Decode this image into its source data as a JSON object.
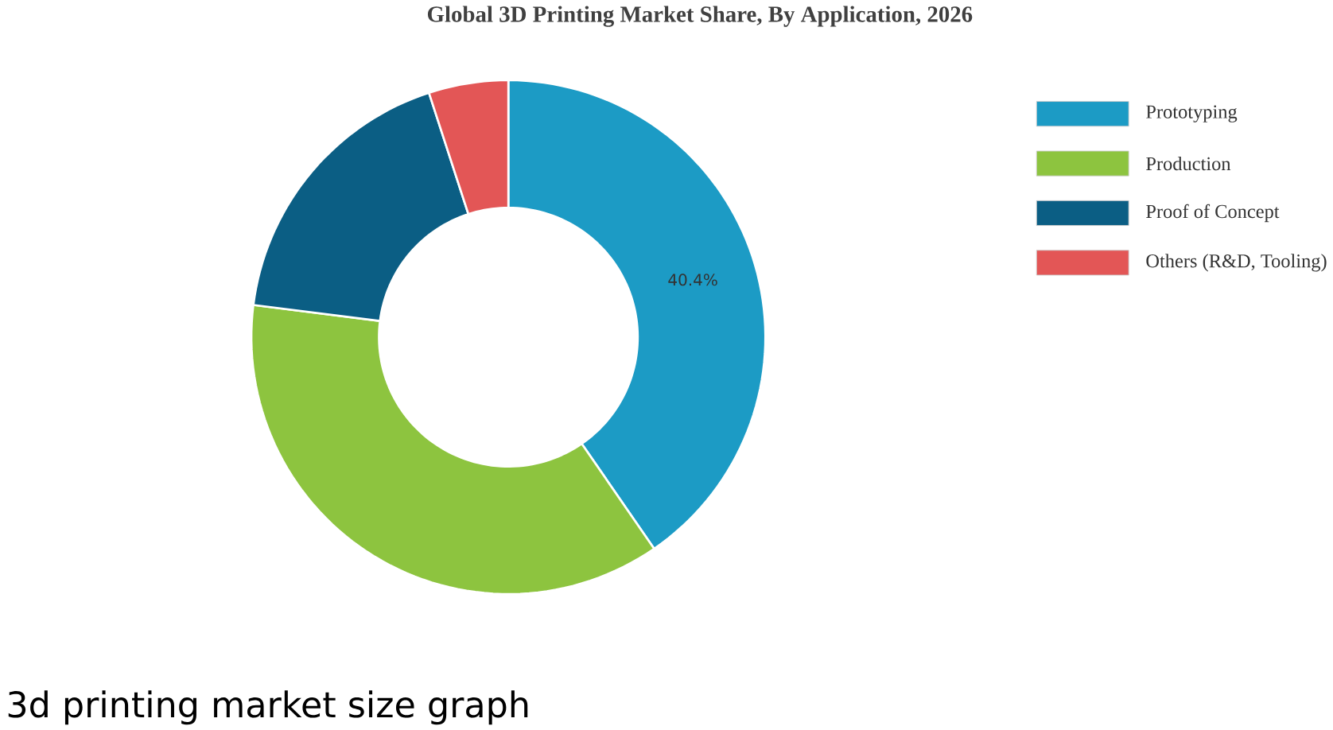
{
  "chart_data": {
    "type": "donut",
    "title": "Global 3D Printing Market Share, By Application, 2026",
    "categories": [
      "Prototyping",
      "Production",
      "Proof of Concept",
      "Others (R&D, Tooling)"
    ],
    "values": [
      40.4,
      36.6,
      18.0,
      5.0
    ],
    "colors": [
      "#1c9bc5",
      "#8dc43f",
      "#0b5e84",
      "#e35656"
    ],
    "value_labels": [
      "40.4%",
      null,
      null,
      null
    ],
    "legend": "top right",
    "annotations": [
      "3d printing market size graph"
    ]
  }
}
